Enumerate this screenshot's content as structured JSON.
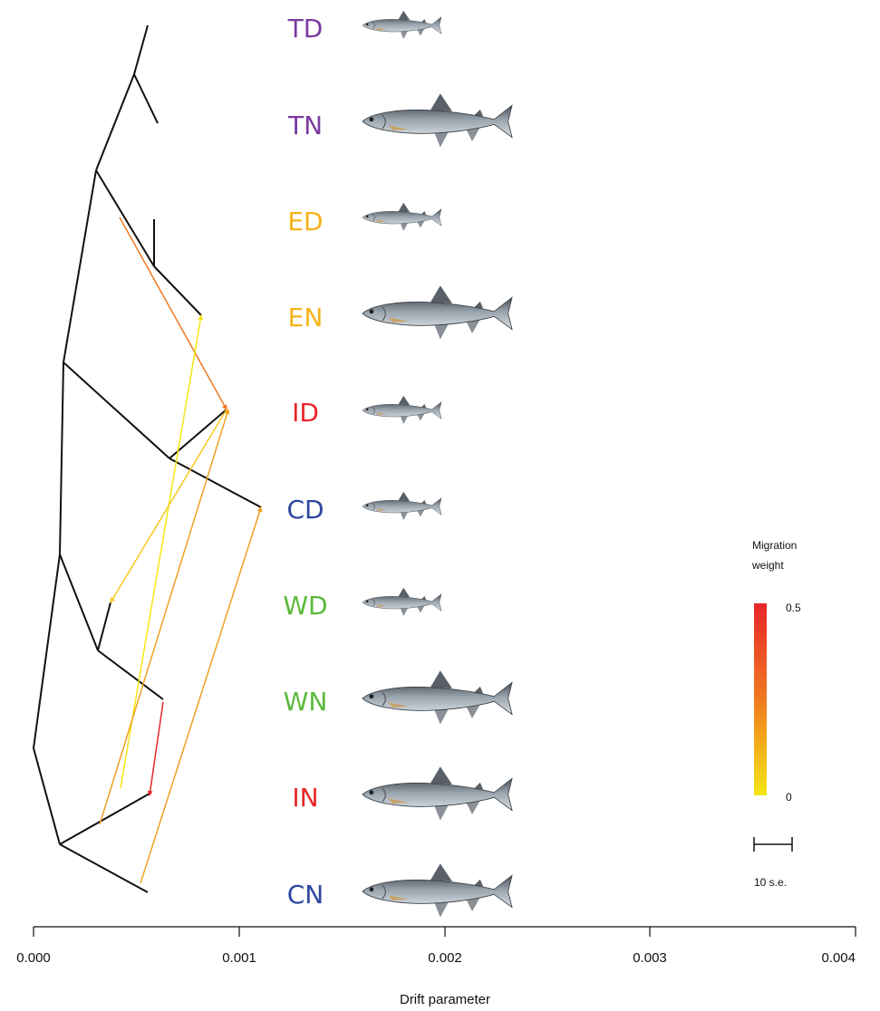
{
  "axis": {
    "label": "Drift parameter",
    "ticks": [
      "0.000",
      "0.001",
      "0.002",
      "0.003",
      "0.004"
    ]
  },
  "populations": [
    {
      "code": "TD",
      "color": "#7a3aa0",
      "fish": "dwarf"
    },
    {
      "code": "TN",
      "color": "#7a3aa0",
      "fish": "normal"
    },
    {
      "code": "ED",
      "color": "#f5b317",
      "fish": "dwarf"
    },
    {
      "code": "EN",
      "color": "#f5b317",
      "fish": "normal"
    },
    {
      "code": "ID",
      "color": "#e8262a",
      "fish": "dwarf"
    },
    {
      "code": "CD",
      "color": "#2d46a0",
      "fish": "dwarf"
    },
    {
      "code": "WD",
      "color": "#5cb83a",
      "fish": "dwarf"
    },
    {
      "code": "WN",
      "color": "#5cb83a",
      "fish": "normal"
    },
    {
      "code": "IN",
      "color": "#e8262a",
      "fish": "normal"
    },
    {
      "code": "CN",
      "color": "#2d46a0",
      "fish": "normal"
    }
  ],
  "legend": {
    "title_line1": "Migration",
    "title_line2": "weight",
    "max_label": "0.5",
    "min_label": "0",
    "scale_label": "10 s.e.",
    "gradient_top": "#e8262a",
    "gradient_bottom": "#f5e614"
  },
  "migration_edge_color": "#f0a020",
  "tree_color": "#111111"
}
